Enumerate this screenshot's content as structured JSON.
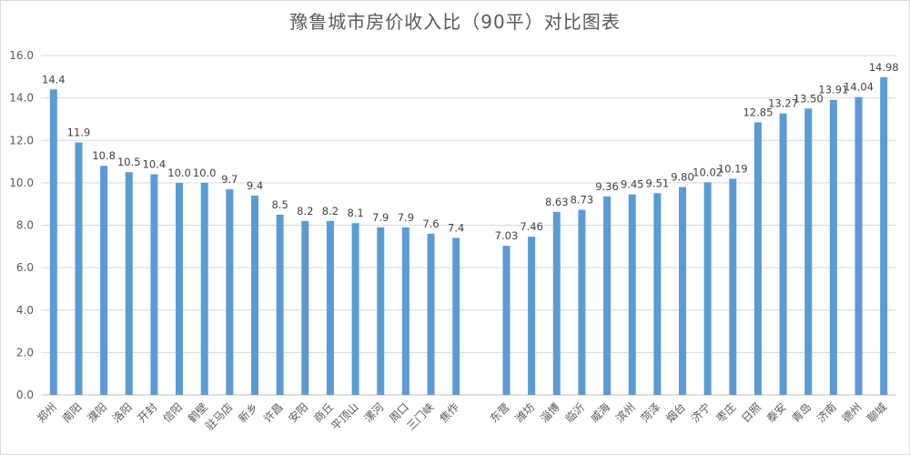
{
  "chart_data": {
    "type": "bar",
    "title": "豫鲁城市房价收入比（90平）对比图表",
    "xlabel": "",
    "ylabel": "",
    "ylim": [
      0,
      16
    ],
    "yticks": [
      "0.0",
      "2.0",
      "4.0",
      "6.0",
      "8.0",
      "10.0",
      "12.0",
      "14.0",
      "16.0"
    ],
    "grid": true,
    "bar_color": "#5b9bd5",
    "categories": [
      "郑州",
      "南阳",
      "濮阳",
      "洛阳",
      "开封",
      "信阳",
      "鹤壁",
      "驻马店",
      "新乡",
      "许昌",
      "安阳",
      "商丘",
      "平顶山",
      "漯河",
      "周口",
      "三门峡",
      "焦作",
      "",
      "东营",
      "潍坊",
      "淄博",
      "临沂",
      "威海",
      "滨州",
      "菏泽",
      "烟台",
      "济宁",
      "枣庄",
      "日照",
      "泰安",
      "青岛",
      "济南",
      "德州",
      "聊城"
    ],
    "values": [
      14.4,
      11.9,
      10.8,
      10.5,
      10.4,
      10.0,
      10.0,
      9.7,
      9.4,
      8.5,
      8.2,
      8.2,
      8.1,
      7.9,
      7.9,
      7.6,
      7.4,
      null,
      7.03,
      7.46,
      8.63,
      8.73,
      9.36,
      9.45,
      9.51,
      9.8,
      10.02,
      10.19,
      12.85,
      13.27,
      13.5,
      13.91,
      14.04,
      14.98
    ],
    "labels": [
      "14.4",
      "11.9",
      "10.8",
      "10.5",
      "10.4",
      "10.0",
      "10.0",
      "9.7",
      "9.4",
      "8.5",
      "8.2",
      "8.2",
      "8.1",
      "7.9",
      "7.9",
      "7.6",
      "7.4",
      "",
      "7.03",
      "7.46",
      "8.63",
      "8.73",
      "9.36",
      "9.45",
      "9.51",
      "9.80",
      "10.02",
      "10.19",
      "12.85",
      "13.27",
      "13.50",
      "13.91",
      "14.04",
      "14.98"
    ]
  }
}
